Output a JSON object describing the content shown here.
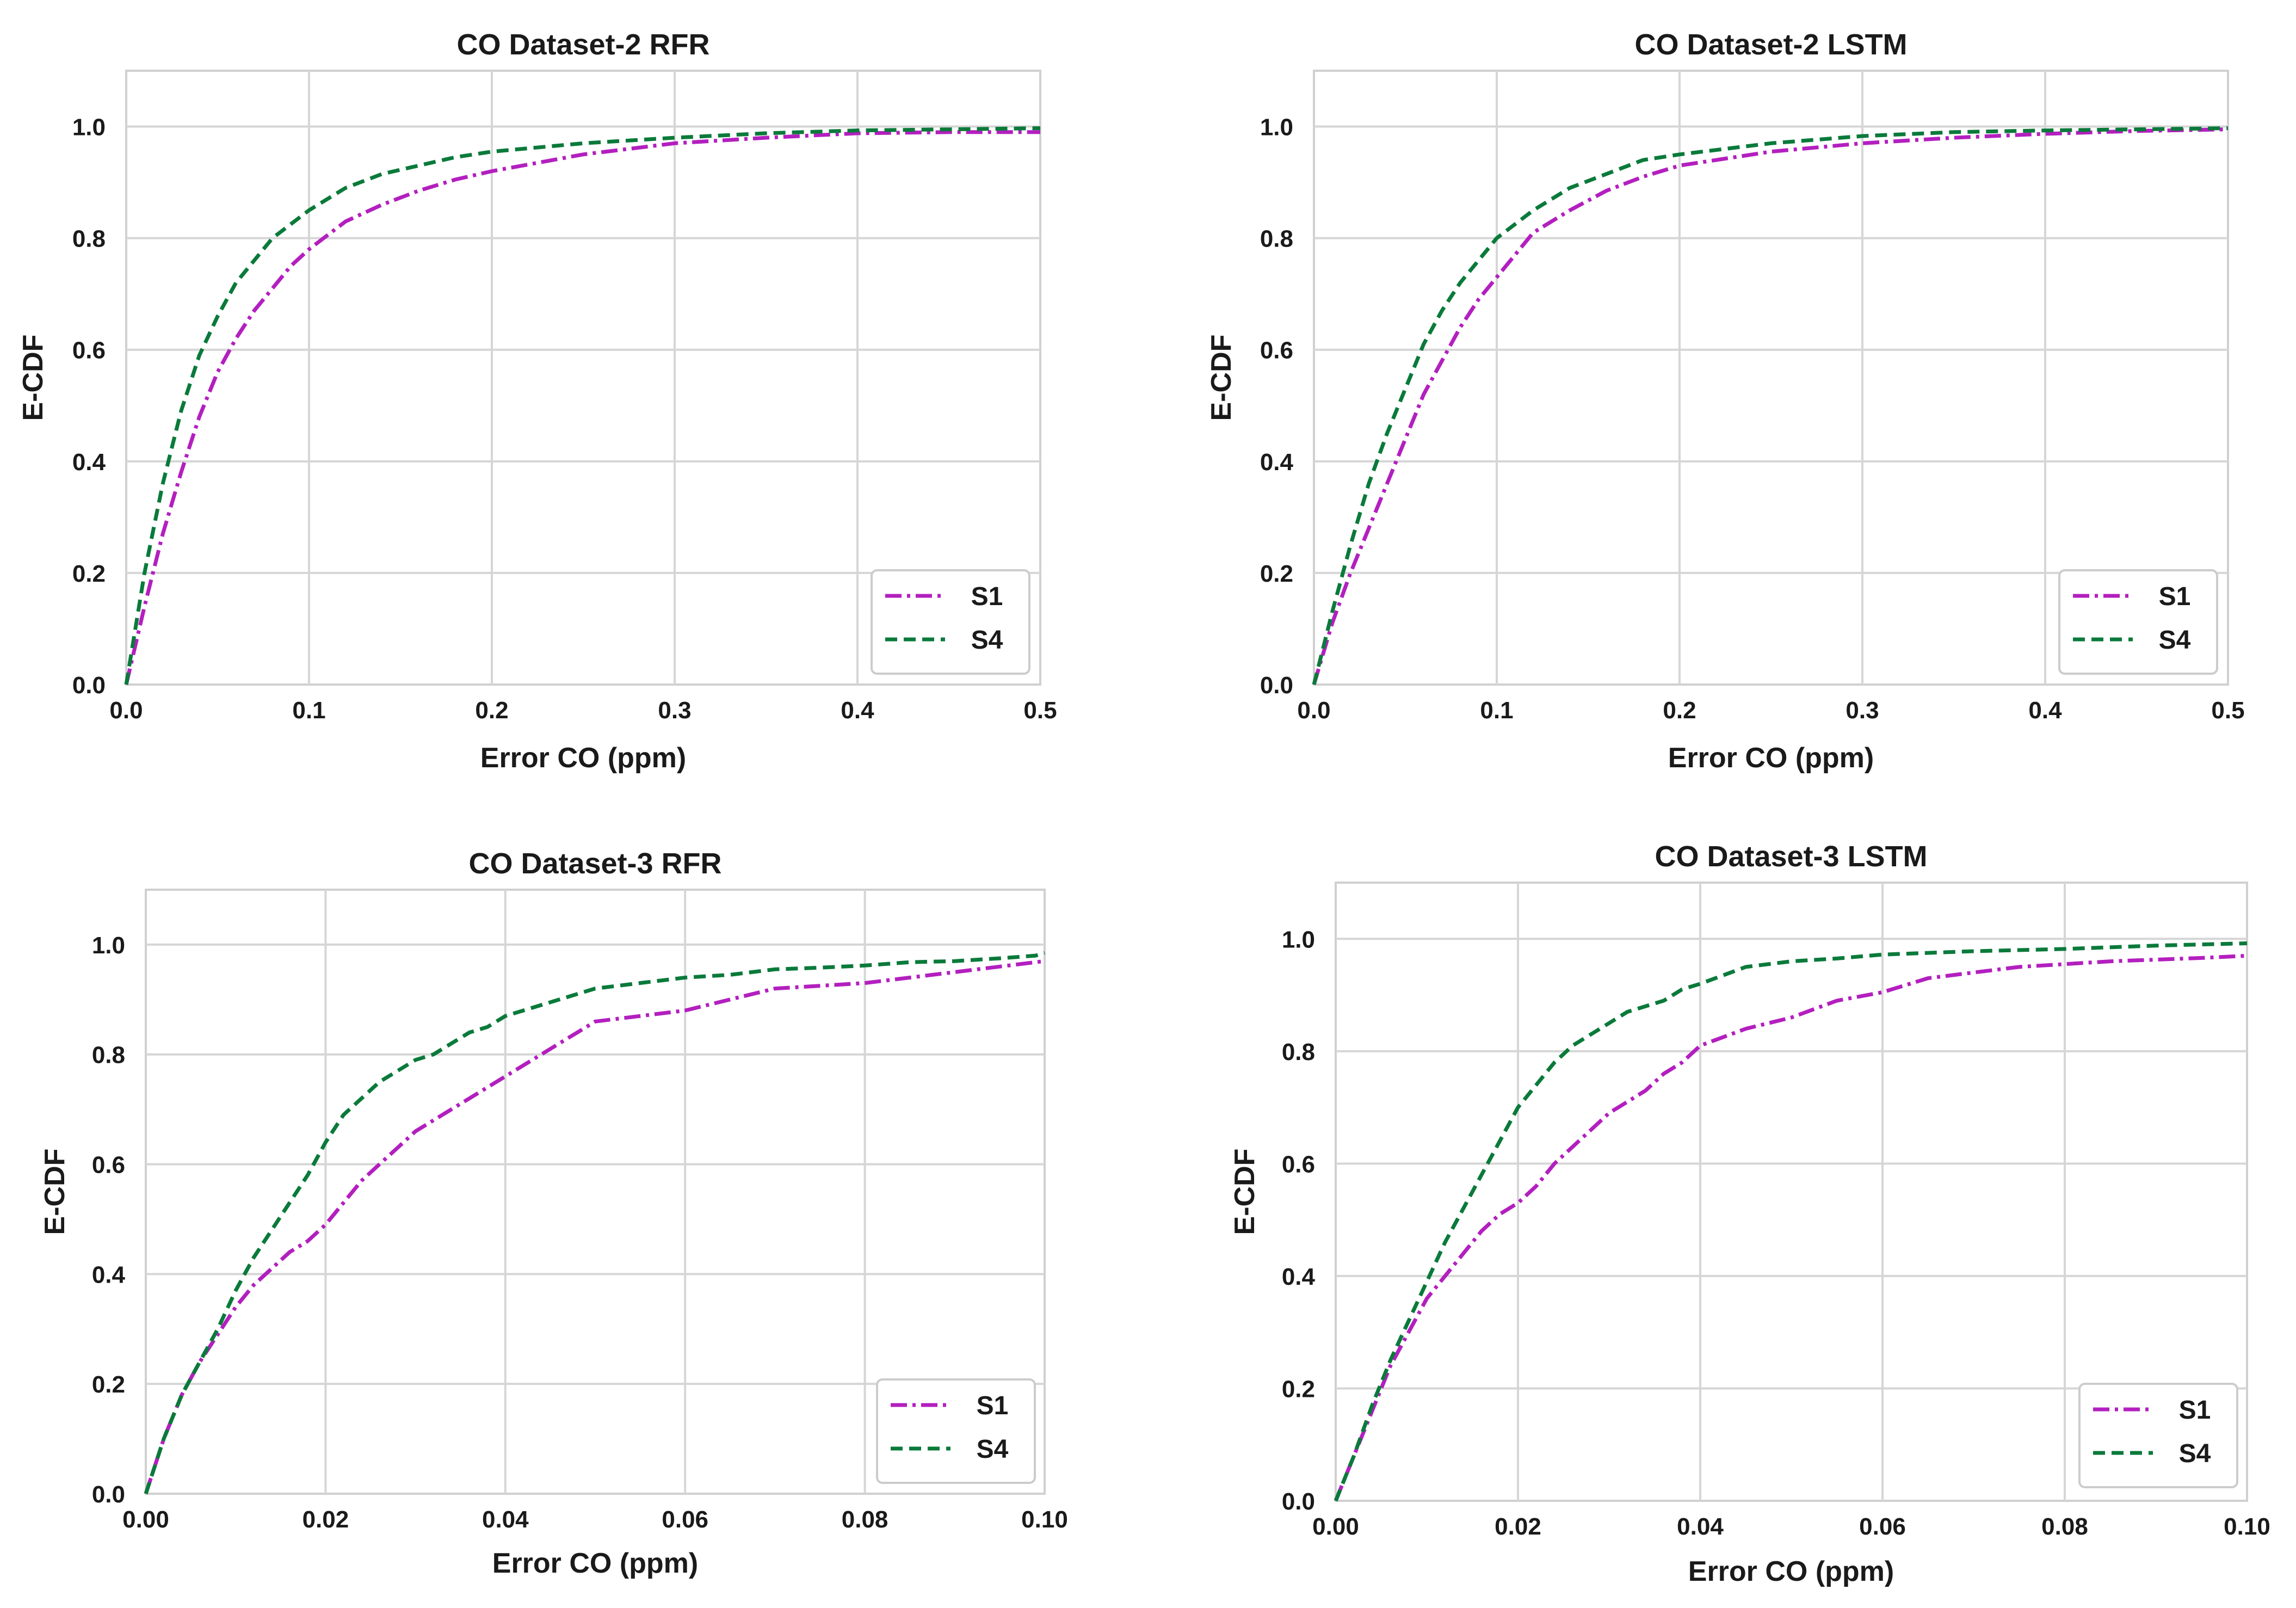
{
  "chart_data": [
    {
      "type": "line",
      "title": "CO Dataset-2 RFR",
      "xlabel": "Error CO (ppm)",
      "ylabel": "E-CDF",
      "xlim": [
        0,
        0.5
      ],
      "ylim": [
        0,
        1.1
      ],
      "xticks": [
        "0.0",
        "0.1",
        "0.2",
        "0.3",
        "0.4",
        "0.5"
      ],
      "yticks": [
        "0.0",
        "0.2",
        "0.4",
        "0.6",
        "0.8",
        "1.0"
      ],
      "grid": true,
      "legend_position": "lower-right",
      "series": [
        {
          "name": "S1",
          "color": "#b31fbf",
          "dash": "dashdot",
          "x": [
            0,
            0.01,
            0.02,
            0.03,
            0.04,
            0.05,
            0.06,
            0.07,
            0.08,
            0.09,
            0.1,
            0.12,
            0.14,
            0.16,
            0.18,
            0.2,
            0.25,
            0.3,
            0.35,
            0.4,
            0.45,
            0.5
          ],
          "y": [
            0,
            0.14,
            0.27,
            0.38,
            0.48,
            0.56,
            0.62,
            0.67,
            0.71,
            0.75,
            0.78,
            0.83,
            0.86,
            0.885,
            0.905,
            0.92,
            0.95,
            0.97,
            0.98,
            0.988,
            0.99,
            0.99
          ]
        },
        {
          "name": "S4",
          "color": "#0a7a3a",
          "dash": "dashed",
          "x": [
            0,
            0.01,
            0.02,
            0.03,
            0.04,
            0.05,
            0.06,
            0.07,
            0.08,
            0.1,
            0.12,
            0.14,
            0.16,
            0.18,
            0.2,
            0.25,
            0.3,
            0.35,
            0.4,
            0.45,
            0.5
          ],
          "y": [
            0,
            0.2,
            0.36,
            0.49,
            0.59,
            0.66,
            0.72,
            0.76,
            0.8,
            0.85,
            0.89,
            0.915,
            0.93,
            0.945,
            0.955,
            0.97,
            0.98,
            0.988,
            0.993,
            0.995,
            0.997
          ]
        }
      ]
    },
    {
      "type": "line",
      "title": "CO Dataset-2 LSTM",
      "xlabel": "Error CO (ppm)",
      "ylabel": "E-CDF",
      "xlim": [
        0,
        0.5
      ],
      "ylim": [
        0,
        1.1
      ],
      "xticks": [
        "0.0",
        "0.1",
        "0.2",
        "0.3",
        "0.4",
        "0.5"
      ],
      "yticks": [
        "0.0",
        "0.2",
        "0.4",
        "0.6",
        "0.8",
        "1.0"
      ],
      "grid": true,
      "legend_position": "lower-right",
      "series": [
        {
          "name": "S1",
          "color": "#b31fbf",
          "dash": "dashdot",
          "x": [
            0,
            0.01,
            0.02,
            0.03,
            0.04,
            0.05,
            0.06,
            0.07,
            0.08,
            0.09,
            0.1,
            0.11,
            0.12,
            0.14,
            0.16,
            0.18,
            0.2,
            0.25,
            0.3,
            0.35,
            0.4,
            0.45,
            0.5
          ],
          "y": [
            0,
            0.11,
            0.2,
            0.28,
            0.36,
            0.44,
            0.52,
            0.58,
            0.64,
            0.69,
            0.73,
            0.77,
            0.81,
            0.85,
            0.885,
            0.91,
            0.93,
            0.955,
            0.97,
            0.98,
            0.987,
            0.992,
            0.995
          ]
        },
        {
          "name": "S4",
          "color": "#0a7a3a",
          "dash": "dashed",
          "x": [
            0,
            0.01,
            0.02,
            0.03,
            0.04,
            0.05,
            0.06,
            0.07,
            0.08,
            0.09,
            0.1,
            0.12,
            0.14,
            0.16,
            0.18,
            0.2,
            0.25,
            0.3,
            0.35,
            0.4,
            0.45,
            0.5
          ],
          "y": [
            0,
            0.13,
            0.25,
            0.36,
            0.45,
            0.53,
            0.61,
            0.67,
            0.72,
            0.76,
            0.8,
            0.85,
            0.89,
            0.915,
            0.94,
            0.95,
            0.97,
            0.983,
            0.99,
            0.993,
            0.995,
            0.997
          ]
        }
      ]
    },
    {
      "type": "line",
      "title": "CO Dataset-3 RFR",
      "xlabel": "Error CO (ppm)",
      "ylabel": "E-CDF",
      "xlim": [
        0,
        0.1
      ],
      "ylim": [
        0,
        1.1
      ],
      "xticks": [
        "0.00",
        "0.02",
        "0.04",
        "0.06",
        "0.08",
        "0.10"
      ],
      "yticks": [
        "0.0",
        "0.2",
        "0.4",
        "0.6",
        "0.8",
        "1.0"
      ],
      "grid": true,
      "legend_position": "lower-right",
      "series": [
        {
          "name": "S1",
          "color": "#b31fbf",
          "dash": "dashdot",
          "x": [
            0,
            0.002,
            0.004,
            0.006,
            0.008,
            0.01,
            0.012,
            0.014,
            0.016,
            0.018,
            0.02,
            0.022,
            0.024,
            0.026,
            0.028,
            0.03,
            0.032,
            0.034,
            0.036,
            0.038,
            0.04,
            0.042,
            0.044,
            0.046,
            0.048,
            0.05,
            0.055,
            0.06,
            0.065,
            0.07,
            0.075,
            0.08,
            0.085,
            0.09,
            0.095,
            0.1
          ],
          "y": [
            0,
            0.1,
            0.18,
            0.24,
            0.29,
            0.34,
            0.38,
            0.41,
            0.44,
            0.46,
            0.49,
            0.53,
            0.57,
            0.6,
            0.63,
            0.66,
            0.68,
            0.7,
            0.72,
            0.74,
            0.76,
            0.78,
            0.8,
            0.82,
            0.84,
            0.86,
            0.87,
            0.88,
            0.9,
            0.92,
            0.925,
            0.93,
            0.94,
            0.95,
            0.96,
            0.97
          ]
        },
        {
          "name": "S4",
          "color": "#0a7a3a",
          "dash": "dashed",
          "x": [
            0,
            0.002,
            0.004,
            0.006,
            0.008,
            0.01,
            0.012,
            0.014,
            0.016,
            0.018,
            0.02,
            0.022,
            0.024,
            0.026,
            0.028,
            0.03,
            0.032,
            0.034,
            0.036,
            0.038,
            0.04,
            0.042,
            0.044,
            0.046,
            0.048,
            0.05,
            0.055,
            0.06,
            0.065,
            0.07,
            0.075,
            0.08,
            0.085,
            0.09,
            0.095,
            0.099,
            0.1
          ],
          "y": [
            0,
            0.1,
            0.18,
            0.24,
            0.3,
            0.37,
            0.43,
            0.48,
            0.53,
            0.58,
            0.64,
            0.69,
            0.72,
            0.75,
            0.77,
            0.79,
            0.8,
            0.82,
            0.84,
            0.85,
            0.87,
            0.88,
            0.89,
            0.9,
            0.91,
            0.92,
            0.93,
            0.94,
            0.945,
            0.955,
            0.958,
            0.962,
            0.968,
            0.97,
            0.975,
            0.98,
            0.985
          ]
        }
      ]
    },
    {
      "type": "line",
      "title": "CO Dataset-3 LSTM",
      "xlabel": "Error CO (ppm)",
      "ylabel": "E-CDF",
      "xlim": [
        0,
        0.1
      ],
      "ylim": [
        0,
        1.1
      ],
      "xticks": [
        "0.00",
        "0.02",
        "0.04",
        "0.06",
        "0.08",
        "0.10"
      ],
      "yticks": [
        "0.0",
        "0.2",
        "0.4",
        "0.6",
        "0.8",
        "1.0"
      ],
      "grid": true,
      "legend_position": "lower-right",
      "series": [
        {
          "name": "S1",
          "color": "#b31fbf",
          "dash": "dashdot",
          "x": [
            0,
            0.002,
            0.004,
            0.006,
            0.008,
            0.01,
            0.012,
            0.014,
            0.016,
            0.018,
            0.02,
            0.022,
            0.024,
            0.026,
            0.028,
            0.03,
            0.032,
            0.034,
            0.036,
            0.038,
            0.04,
            0.045,
            0.05,
            0.055,
            0.06,
            0.065,
            0.07,
            0.075,
            0.08,
            0.085,
            0.09,
            0.095,
            0.1
          ],
          "y": [
            0,
            0.08,
            0.16,
            0.24,
            0.3,
            0.36,
            0.4,
            0.44,
            0.48,
            0.51,
            0.53,
            0.56,
            0.6,
            0.63,
            0.66,
            0.69,
            0.71,
            0.73,
            0.76,
            0.78,
            0.81,
            0.84,
            0.86,
            0.89,
            0.905,
            0.93,
            0.94,
            0.95,
            0.955,
            0.96,
            0.963,
            0.966,
            0.97
          ]
        },
        {
          "name": "S4",
          "color": "#0a7a3a",
          "dash": "dashed",
          "x": [
            0,
            0.002,
            0.004,
            0.006,
            0.008,
            0.01,
            0.012,
            0.014,
            0.016,
            0.018,
            0.02,
            0.022,
            0.024,
            0.026,
            0.028,
            0.03,
            0.032,
            0.034,
            0.036,
            0.038,
            0.04,
            0.045,
            0.05,
            0.055,
            0.06,
            0.07,
            0.08,
            0.09,
            0.1
          ],
          "y": [
            0,
            0.08,
            0.17,
            0.25,
            0.32,
            0.39,
            0.46,
            0.52,
            0.58,
            0.64,
            0.7,
            0.74,
            0.78,
            0.81,
            0.83,
            0.85,
            0.87,
            0.88,
            0.89,
            0.91,
            0.92,
            0.95,
            0.96,
            0.965,
            0.972,
            0.978,
            0.982,
            0.988,
            0.992
          ]
        }
      ]
    }
  ]
}
